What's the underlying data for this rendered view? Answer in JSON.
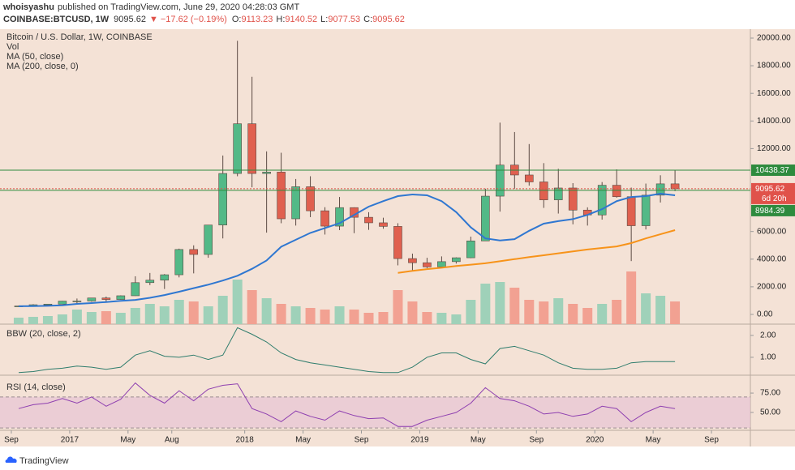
{
  "header": {
    "author": "whoisyashu",
    "published": "published on TradingView.com, June 29, 2020 04:28:03 GMT",
    "symbol": "COINBASE:BTCUSD, 1W",
    "last": 9095.62,
    "change": "▼ −17.62 (−0.19%)",
    "ohlc": [
      {
        "label": "O:",
        "value": 9113.23
      },
      {
        "label": "H:",
        "value": 9140.52
      },
      {
        "label": "L:",
        "value": 9077.53
      },
      {
        "label": "C:",
        "value": 9095.62
      }
    ]
  },
  "footer": {
    "brand": "TradingView"
  },
  "chart_data": [
    {
      "type": "candlestick",
      "title": "Bitcoin / U.S. Dollar, 1W, COINBASE",
      "x": [
        "2016-09",
        "2016-10",
        "2016-11",
        "2016-12",
        "2017-01",
        "2017-02",
        "2017-03",
        "2017-04",
        "2017-05",
        "2017-06",
        "2017-07",
        "2017-08",
        "2017-09",
        "2017-10",
        "2017-11",
        "2017-12",
        "2018-01",
        "2018-02",
        "2018-03",
        "2018-04",
        "2018-05",
        "2018-06",
        "2018-07",
        "2018-08",
        "2018-09",
        "2018-10",
        "2018-11",
        "2018-12",
        "2019-01",
        "2019-02",
        "2019-03",
        "2019-04",
        "2019-05",
        "2019-06",
        "2019-07",
        "2019-08",
        "2019-09",
        "2019-10",
        "2019-11",
        "2019-12",
        "2020-01",
        "2020-02",
        "2020-03",
        "2020-04",
        "2020-05",
        "2020-06"
      ],
      "open": [
        573,
        609,
        700,
        745,
        963,
        970,
        1190,
        1080,
        1350,
        2300,
        2480,
        2870,
        4700,
        4340,
        6470,
        10200,
        13800,
        10200,
        10300,
        6920,
        9240,
        7500,
        6390,
        7730,
        7030,
        6630,
        6370,
        4040,
        3740,
        3440,
        3820,
        4100,
        5320,
        8560,
        10810,
        10090,
        9590,
        8290,
        9150,
        7550,
        7200,
        9350,
        8520,
        6420,
        8630,
        9450
      ],
      "high": [
        628,
        740,
        756,
        975,
        1150,
        1200,
        1290,
        1380,
        2760,
        3000,
        2920,
        4760,
        5000,
        6470,
        11500,
        19800,
        17200,
        11800,
        11700,
        9800,
        10000,
        7760,
        8500,
        7750,
        7400,
        7000,
        6600,
        4400,
        4100,
        4200,
        4130,
        5630,
        9100,
        13880,
        13200,
        12330,
        10950,
        10540,
        9500,
        7750,
        9580,
        10500,
        9180,
        9470,
        10070,
        10430
      ],
      "low": [
        570,
        604,
        680,
        740,
        755,
        920,
        890,
        1060,
        1340,
        2120,
        1840,
        2680,
        2970,
        4100,
        5500,
        10000,
        9200,
        5920,
        6600,
        6430,
        7040,
        5780,
        6100,
        5880,
        6120,
        6200,
        3550,
        3120,
        3350,
        3380,
        3680,
        4070,
        5350,
        7440,
        9100,
        9320,
        7710,
        7300,
        6520,
        6430,
        6860,
        8450,
        3860,
        6150,
        8100,
        8920
      ],
      "close": [
        609,
        700,
        745,
        963,
        970,
        1190,
        1080,
        1350,
        2300,
        2480,
        2870,
        4700,
        4340,
        6470,
        10200,
        13800,
        10200,
        10300,
        6920,
        9240,
        7500,
        6390,
        7730,
        7030,
        6630,
        6370,
        4040,
        3740,
        3440,
        3820,
        4100,
        5320,
        8560,
        10810,
        10090,
        9590,
        8290,
        9150,
        7550,
        7200,
        9350,
        8520,
        6420,
        8630,
        9450,
        9095.62
      ],
      "up_color": "#53b987",
      "down_color": "#e0604f",
      "ylim": [
        -704,
        20645
      ],
      "yticks": [
        {
          "value": 0,
          "label": "0.00"
        },
        {
          "value": 2000,
          "label": "2000.00"
        },
        {
          "value": 4000,
          "label": "4000.00"
        },
        {
          "value": 6000,
          "label": "6000.00"
        },
        {
          "value": 12000,
          "label": "12000.00"
        },
        {
          "value": 14000,
          "label": "14000.00"
        },
        {
          "value": 16000,
          "label": "16000.00"
        },
        {
          "value": 18000,
          "label": "18000.00"
        },
        {
          "value": 20000,
          "label": "20000.00"
        }
      ],
      "xlim": [
        "2016-08",
        "2020-11"
      ],
      "xticks": [
        {
          "value": "2016-09",
          "label": "Sep"
        },
        {
          "value": "2017-01",
          "label": "2017"
        },
        {
          "value": "2017-05",
          "label": "May"
        },
        {
          "value": "2017-08",
          "label": "Aug"
        },
        {
          "value": "2018-01",
          "label": "2018"
        },
        {
          "value": "2018-05",
          "label": "May"
        },
        {
          "value": "2018-09",
          "label": "Sep"
        },
        {
          "value": "2019-01",
          "label": "2019"
        },
        {
          "value": "2019-05",
          "label": "May"
        },
        {
          "value": "2019-09",
          "label": "Sep"
        },
        {
          "value": "2020-01",
          "label": "2020"
        },
        {
          "value": "2020-05",
          "label": "May"
        },
        {
          "value": "2020-09",
          "label": "Sep"
        }
      ],
      "volume": {
        "name": "Vol",
        "up_color": "#9fd1b9",
        "down_color": "#f2a192",
        "ylim": [
          0,
          100
        ],
        "values": [
          8,
          9,
          10,
          12,
          18,
          15,
          16,
          14,
          20,
          25,
          22,
          30,
          28,
          22,
          35,
          55,
          42,
          32,
          25,
          22,
          20,
          18,
          22,
          18,
          14,
          15,
          42,
          28,
          15,
          14,
          12,
          30,
          50,
          52,
          45,
          30,
          28,
          32,
          25,
          20,
          25,
          30,
          65,
          38,
          35,
          28
        ]
      },
      "overlays": [
        {
          "name": "MA (50, close)",
          "color": "#2f77d1",
          "values": [
            590,
            600,
            620,
            660,
            760,
            820,
            900,
            980,
            1050,
            1200,
            1400,
            1640,
            1900,
            2150,
            2450,
            2800,
            3300,
            3900,
            4900,
            5400,
            5900,
            6250,
            6600,
            7200,
            7800,
            8200,
            8560,
            8680,
            8620,
            8200,
            7400,
            6300,
            5500,
            5350,
            5450,
            6050,
            6570,
            6750,
            6900,
            7200,
            7620,
            8200,
            8500,
            8560,
            8740,
            8620
          ]
        },
        {
          "name": "MA (200, close, 0)",
          "color": "#f7931a",
          "values": [
            null,
            null,
            null,
            null,
            null,
            null,
            null,
            null,
            null,
            null,
            null,
            null,
            null,
            null,
            null,
            null,
            null,
            null,
            null,
            null,
            null,
            null,
            null,
            null,
            null,
            null,
            3000,
            3150,
            3280,
            3380,
            3500,
            3600,
            3700,
            3850,
            4000,
            4150,
            4280,
            4420,
            4560,
            4700,
            4810,
            4920,
            5160,
            5500,
            5800,
            6100
          ]
        }
      ],
      "levels": [
        {
          "value": 10438.37,
          "color": "#2e8b3e",
          "style": "solid"
        },
        {
          "value": 9095.62,
          "color": "#e0524a",
          "style": "dotted"
        },
        {
          "value": 8984.39,
          "color": "#2e8b3e",
          "style": "solid"
        }
      ],
      "countdown": "6d 20h"
    },
    {
      "type": "line",
      "title": "BBW (20, close, 2)",
      "color": "#2f7d6d",
      "values": [
        0.3,
        0.35,
        0.45,
        0.5,
        0.6,
        0.55,
        0.45,
        0.55,
        1.1,
        1.3,
        1.05,
        1.0,
        1.1,
        0.9,
        1.1,
        2.35,
        2.05,
        1.7,
        1.2,
        0.9,
        0.75,
        0.65,
        0.55,
        0.45,
        0.35,
        0.3,
        0.3,
        0.55,
        1.0,
        1.2,
        1.2,
        0.9,
        0.7,
        1.4,
        1.5,
        1.3,
        1.1,
        0.75,
        0.5,
        0.45,
        0.45,
        0.5,
        0.75,
        0.8,
        0.8,
        0.8
      ],
      "ylim": [
        0.22,
        2.44
      ],
      "yticks": [
        {
          "value": 1,
          "label": "1.00"
        },
        {
          "value": 2,
          "label": "2.00"
        }
      ]
    },
    {
      "type": "line",
      "title": "RSI (14, close)",
      "color": "#8e3fb0",
      "band": [
        30,
        70
      ],
      "band_color": "#e7c4d4",
      "values": [
        55,
        60,
        62,
        68,
        62,
        70,
        58,
        67,
        88,
        72,
        62,
        78,
        65,
        80,
        85,
        87,
        55,
        48,
        38,
        52,
        45,
        40,
        52,
        46,
        42,
        43,
        32,
        32,
        40,
        45,
        50,
        62,
        82,
        68,
        65,
        58,
        48,
        50,
        45,
        48,
        58,
        55,
        38,
        50,
        58,
        55
      ],
      "ylim": [
        28,
        96
      ],
      "yticks": [
        {
          "value": 50,
          "label": "50.00"
        },
        {
          "value": 75,
          "label": "75.00"
        }
      ]
    }
  ]
}
